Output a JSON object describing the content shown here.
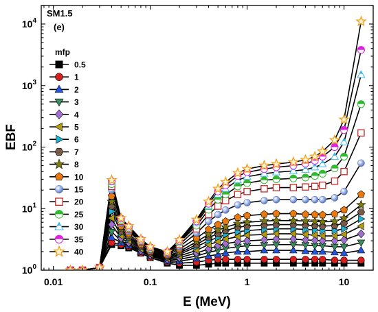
{
  "chart_data": {
    "type": "line",
    "panel_label": "SM1.5",
    "panel_sub": "(e)",
    "xlabel": "E (MeV)",
    "ylabel": "EBF",
    "x_scale": "log",
    "y_scale": "log",
    "xlim": [
      0.0075,
      20
    ],
    "ylim": [
      1,
      20000
    ],
    "x_ticks": [
      {
        "v": 0.01,
        "label": "0.01"
      },
      {
        "v": 0.1,
        "label": "0.1"
      },
      {
        "v": 1,
        "label": "1"
      },
      {
        "v": 10,
        "label": "10"
      }
    ],
    "y_ticks": [
      {
        "v": 1,
        "base": "10",
        "exp": "0"
      },
      {
        "v": 10,
        "base": "10",
        "exp": "1"
      },
      {
        "v": 100,
        "base": "10",
        "exp": "2"
      },
      {
        "v": 1000,
        "base": "10",
        "exp": "3"
      },
      {
        "v": 10000,
        "base": "10",
        "exp": "4"
      }
    ],
    "legend_title": "mfp",
    "legend_position": "left",
    "x": [
      0.015,
      0.02,
      0.03,
      0.04,
      0.05,
      0.06,
      0.08,
      0.1,
      0.15,
      0.2,
      0.3,
      0.4,
      0.5,
      0.6,
      0.8,
      1,
      1.5,
      2,
      3,
      4,
      5,
      6,
      8,
      10,
      15
    ],
    "series": [
      {
        "name": "0.5",
        "color": "#000000",
        "marker": "square",
        "values": [
          1.0,
          1.0,
          1.1,
          2.6,
          2.5,
          2.3,
          1.9,
          1.6,
          1.3,
          1.2,
          1.2,
          1.25,
          1.3,
          1.3,
          1.3,
          1.3,
          1.3,
          1.3,
          1.3,
          1.3,
          1.3,
          1.3,
          1.3,
          1.3,
          1.3
        ]
      },
      {
        "name": "1",
        "color": "#d62020",
        "marker": "circle",
        "values": [
          1.0,
          1.0,
          1.1,
          2.8,
          2.6,
          2.4,
          1.9,
          1.6,
          1.35,
          1.3,
          1.35,
          1.45,
          1.5,
          1.5,
          1.5,
          1.5,
          1.5,
          1.5,
          1.5,
          1.5,
          1.5,
          1.5,
          1.45,
          1.45,
          1.45
        ]
      },
      {
        "name": "2",
        "color": "#2255e0",
        "marker": "triangle-up",
        "values": [
          1.0,
          1.0,
          1.1,
          3.4,
          2.8,
          2.5,
          2.0,
          1.7,
          1.4,
          1.4,
          1.55,
          1.7,
          1.8,
          1.9,
          2.0,
          2.0,
          2.1,
          2.1,
          2.1,
          2.05,
          2.0,
          2.0,
          1.95,
          1.9,
          2.1
        ]
      },
      {
        "name": "3",
        "color": "#3a8f5e",
        "marker": "triangle-down",
        "values": [
          1.0,
          1.0,
          1.1,
          4.2,
          3.0,
          2.6,
          2.05,
          1.7,
          1.45,
          1.5,
          1.7,
          1.95,
          2.1,
          2.25,
          2.4,
          2.5,
          2.55,
          2.6,
          2.6,
          2.55,
          2.5,
          2.5,
          2.4,
          2.4,
          2.8
        ]
      },
      {
        "name": "4",
        "color": "#a070d0",
        "marker": "diamond",
        "values": [
          1.0,
          1.0,
          1.1,
          5.5,
          3.3,
          2.8,
          2.1,
          1.75,
          1.5,
          1.6,
          1.9,
          2.2,
          2.5,
          2.7,
          2.9,
          3.0,
          3.1,
          3.2,
          3.2,
          3.1,
          3.05,
          3.0,
          3.0,
          3.1,
          3.9
        ]
      },
      {
        "name": "5",
        "color": "#b09a10",
        "marker": "triangle-left",
        "values": [
          1.0,
          1.0,
          1.1,
          7.0,
          3.6,
          3.0,
          2.2,
          1.8,
          1.55,
          1.7,
          2.1,
          2.6,
          2.9,
          3.2,
          3.5,
          3.7,
          3.8,
          3.9,
          3.9,
          3.8,
          3.7,
          3.6,
          3.6,
          3.8,
          5.2
        ]
      },
      {
        "name": "6",
        "color": "#20b0d0",
        "marker": "triangle-right",
        "values": [
          1.0,
          1.0,
          1.1,
          9.0,
          4.0,
          3.2,
          2.3,
          1.85,
          1.6,
          1.8,
          2.4,
          3.0,
          3.4,
          3.8,
          4.2,
          4.4,
          4.6,
          4.7,
          4.7,
          4.6,
          4.5,
          4.4,
          4.4,
          4.7,
          6.8
        ]
      },
      {
        "name": "7",
        "color": "#7a5a48",
        "marker": "hexagon",
        "values": [
          1.0,
          1.0,
          1.1,
          11,
          4.3,
          3.4,
          2.4,
          1.9,
          1.65,
          1.9,
          2.6,
          3.4,
          3.9,
          4.4,
          5.0,
          5.2,
          5.4,
          5.5,
          5.5,
          5.4,
          5.3,
          5.2,
          5.3,
          5.8,
          8.8
        ]
      },
      {
        "name": "8",
        "color": "#7a7a10",
        "marker": "star",
        "values": [
          1.0,
          1.0,
          1.1,
          13,
          4.7,
          3.6,
          2.5,
          1.95,
          1.7,
          2.0,
          2.9,
          3.8,
          4.5,
          5.0,
          5.7,
          6.0,
          6.3,
          6.4,
          6.4,
          6.3,
          6.2,
          6.1,
          6.2,
          7.0,
          11.5
        ]
      },
      {
        "name": "10",
        "color": "#e87810",
        "marker": "pentagon",
        "values": [
          1.0,
          1.0,
          1.1,
          16,
          5.2,
          3.9,
          2.6,
          2.0,
          1.75,
          2.2,
          3.3,
          4.6,
          5.5,
          6.2,
          7.2,
          7.7,
          8.1,
          8.3,
          8.3,
          8.1,
          8.0,
          7.9,
          8.2,
          9.5,
          17
        ]
      },
      {
        "name": "15",
        "color": "#7090d8",
        "marker": "sphere",
        "values": [
          1.0,
          1.0,
          1.1,
          20,
          5.8,
          4.3,
          2.8,
          2.1,
          1.8,
          2.4,
          4.0,
          6.2,
          8.0,
          9.5,
          11.5,
          12.5,
          13.5,
          14,
          14,
          14,
          14,
          14,
          15,
          19,
          55
        ]
      },
      {
        "name": "20",
        "color": "#c02828",
        "marker": "square-open",
        "values": [
          1.0,
          1.0,
          1.1,
          23,
          6.2,
          4.6,
          2.9,
          2.2,
          1.85,
          2.6,
          4.7,
          8.0,
          11,
          13.5,
          17,
          19,
          21,
          22,
          22,
          22.5,
          23,
          24,
          28,
          40,
          170
        ]
      },
      {
        "name": "25",
        "color": "#30b830",
        "marker": "circle-half",
        "values": [
          1.0,
          1.0,
          1.1,
          25,
          6.5,
          4.8,
          3.0,
          2.25,
          1.9,
          2.8,
          5.3,
          9.6,
          14,
          17,
          23,
          26,
          29,
          30,
          31,
          32,
          34,
          37,
          45,
          70,
          500
        ]
      },
      {
        "name": "30",
        "color": "#40b8e8",
        "marker": "triangle-half",
        "values": [
          1.0,
          1.0,
          1.1,
          27,
          6.7,
          5.0,
          3.1,
          2.3,
          1.95,
          2.9,
          5.8,
          11,
          17,
          21,
          29,
          33,
          37,
          39,
          41,
          43,
          47,
          53,
          70,
          120,
          1500
        ]
      },
      {
        "name": "35",
        "color": "#e020e0",
        "marker": "circle-half",
        "values": [
          1.0,
          1.0,
          1.1,
          28,
          6.9,
          5.1,
          3.15,
          2.35,
          1.97,
          3.0,
          6.2,
          12,
          19,
          24,
          34,
          39,
          44,
          47,
          50,
          54,
          60,
          70,
          100,
          190,
          3800
        ]
      },
      {
        "name": "40",
        "color": "#f0a020",
        "marker": "star-open",
        "values": [
          1.0,
          1.0,
          1.1,
          29,
          7.0,
          5.2,
          3.2,
          2.4,
          2.0,
          3.1,
          6.6,
          13,
          21,
          27,
          38,
          44,
          50,
          53,
          57,
          62,
          70,
          85,
          130,
          280,
          11000
        ]
      }
    ]
  }
}
